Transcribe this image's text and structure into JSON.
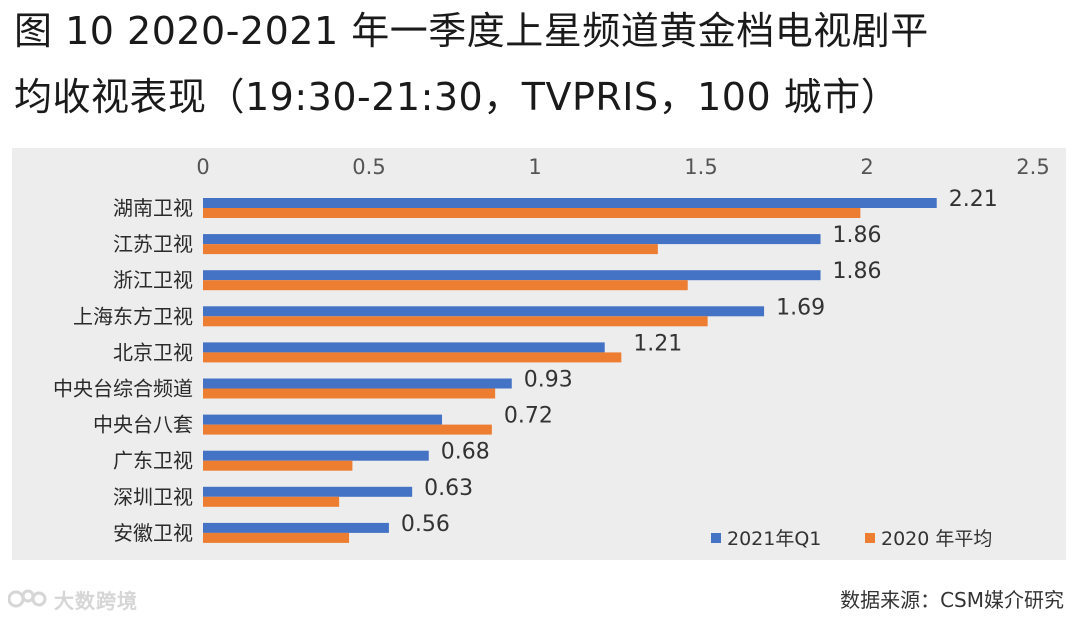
{
  "title": {
    "line1": "图 10 2020-2021 年一季度上星频道黄金档电视剧平",
    "line2": "均收视表现（19:30-21:30，TVPRIS，100 城市）"
  },
  "source": "数据来源：CSM媒介研究",
  "watermark": {
    "text": "大数跨境",
    "icon": "brand-logo-icon"
  },
  "colors": {
    "series_2021": "#4472c4",
    "series_2020": "#ed7d31",
    "panel_bg": "#ededed"
  },
  "chart_data": {
    "type": "bar",
    "orientation": "horizontal",
    "title": "图 10 2020-2021 年一季度上星频道黄金档电视剧平均收视表现（19:30-21:30，TVPRIS，100 城市）",
    "xlim": [
      0,
      2.5
    ],
    "x_ticks": [
      "0",
      "0.5",
      "1",
      "1.5",
      "2",
      "2.5"
    ],
    "x_tick_values": [
      0,
      0.5,
      1,
      1.5,
      2,
      2.5
    ],
    "x_axis_position": "top",
    "grid": false,
    "legend_position": "bottom-right",
    "categories": [
      "湖南卫视",
      "江苏卫视",
      "浙江卫视",
      "上海东方卫视",
      "北京卫视",
      "中央台综合频道",
      "中央台八套",
      "广东卫视",
      "深圳卫视",
      "安徽卫视"
    ],
    "series": [
      {
        "name": "2021年Q1",
        "color": "#4472c4",
        "values": [
          2.21,
          1.86,
          1.86,
          1.69,
          1.21,
          0.93,
          0.72,
          0.68,
          0.63,
          0.56
        ],
        "labels": [
          "2.21",
          "1.86",
          "1.86",
          "1.69",
          "1.21",
          "0.93",
          "0.72",
          "0.68",
          "0.63",
          "0.56"
        ]
      },
      {
        "name": "2020 年平均",
        "color": "#ed7d31",
        "values": [
          1.98,
          1.37,
          1.46,
          1.52,
          1.26,
          0.88,
          0.87,
          0.45,
          0.41,
          0.44
        ]
      }
    ]
  }
}
